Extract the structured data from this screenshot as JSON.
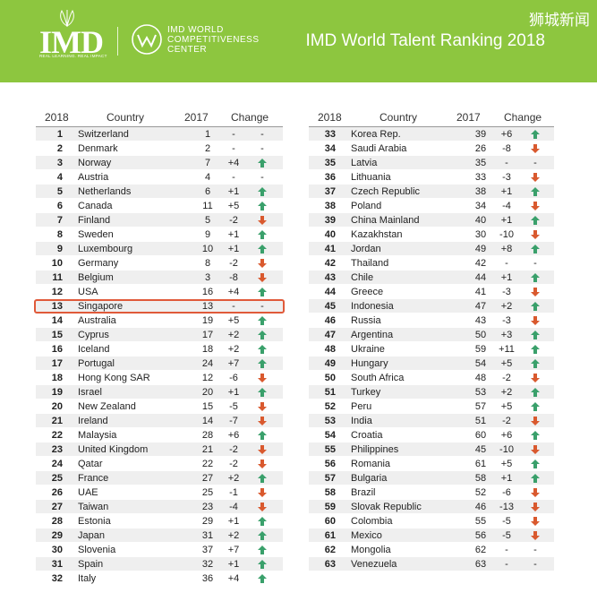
{
  "header": {
    "logo_text": "IMD",
    "logo_tagline": "REAL LEARNING. REAL IMPACT",
    "center_name": [
      "IMD WORLD",
      "COMPETITIVENESS",
      "CENTER"
    ],
    "title": "IMD World Talent Ranking 2018",
    "watermark": "狮城新闻",
    "brand_color": "#8dc63f"
  },
  "columns": {
    "rank": "2018",
    "country": "Country",
    "prev": "2017",
    "change": "Change"
  },
  "colors": {
    "up": "#3aa06b",
    "down": "#d9592e",
    "highlight": "#e05a3a"
  },
  "left_rows": [
    {
      "rank": "1",
      "country": "Switzerland",
      "prev": "1",
      "change": "-",
      "dir": "none"
    },
    {
      "rank": "2",
      "country": "Denmark",
      "prev": "2",
      "change": "-",
      "dir": "none"
    },
    {
      "rank": "3",
      "country": "Norway",
      "prev": "7",
      "change": "+4",
      "dir": "up"
    },
    {
      "rank": "4",
      "country": "Austria",
      "prev": "4",
      "change": "-",
      "dir": "none"
    },
    {
      "rank": "5",
      "country": "Netherlands",
      "prev": "6",
      "change": "+1",
      "dir": "up"
    },
    {
      "rank": "6",
      "country": "Canada",
      "prev": "11",
      "change": "+5",
      "dir": "up"
    },
    {
      "rank": "7",
      "country": "Finland",
      "prev": "5",
      "change": "-2",
      "dir": "down"
    },
    {
      "rank": "8",
      "country": "Sweden",
      "prev": "9",
      "change": "+1",
      "dir": "up"
    },
    {
      "rank": "9",
      "country": "Luxembourg",
      "prev": "10",
      "change": "+1",
      "dir": "up"
    },
    {
      "rank": "10",
      "country": "Germany",
      "prev": "8",
      "change": "-2",
      "dir": "down"
    },
    {
      "rank": "11",
      "country": "Belgium",
      "prev": "3",
      "change": "-8",
      "dir": "down"
    },
    {
      "rank": "12",
      "country": "USA",
      "prev": "16",
      "change": "+4",
      "dir": "up"
    },
    {
      "rank": "13",
      "country": "Singapore",
      "prev": "13",
      "change": "-",
      "dir": "none",
      "highlight": true
    },
    {
      "rank": "14",
      "country": "Australia",
      "prev": "19",
      "change": "+5",
      "dir": "up"
    },
    {
      "rank": "15",
      "country": "Cyprus",
      "prev": "17",
      "change": "+2",
      "dir": "up"
    },
    {
      "rank": "16",
      "country": "Iceland",
      "prev": "18",
      "change": "+2",
      "dir": "up"
    },
    {
      "rank": "17",
      "country": "Portugal",
      "prev": "24",
      "change": "+7",
      "dir": "up"
    },
    {
      "rank": "18",
      "country": "Hong Kong SAR",
      "prev": "12",
      "change": "-6",
      "dir": "down"
    },
    {
      "rank": "19",
      "country": "Israel",
      "prev": "20",
      "change": "+1",
      "dir": "up"
    },
    {
      "rank": "20",
      "country": "New Zealand",
      "prev": "15",
      "change": "-5",
      "dir": "down"
    },
    {
      "rank": "21",
      "country": "Ireland",
      "prev": "14",
      "change": "-7",
      "dir": "down"
    },
    {
      "rank": "22",
      "country": "Malaysia",
      "prev": "28",
      "change": "+6",
      "dir": "up"
    },
    {
      "rank": "23",
      "country": "United Kingdom",
      "prev": "21",
      "change": "-2",
      "dir": "down"
    },
    {
      "rank": "24",
      "country": "Qatar",
      "prev": "22",
      "change": "-2",
      "dir": "down"
    },
    {
      "rank": "25",
      "country": "France",
      "prev": "27",
      "change": "+2",
      "dir": "up"
    },
    {
      "rank": "26",
      "country": "UAE",
      "prev": "25",
      "change": "-1",
      "dir": "down"
    },
    {
      "rank": "27",
      "country": "Taiwan",
      "prev": "23",
      "change": "-4",
      "dir": "down"
    },
    {
      "rank": "28",
      "country": "Estonia",
      "prev": "29",
      "change": "+1",
      "dir": "up"
    },
    {
      "rank": "29",
      "country": "Japan",
      "prev": "31",
      "change": "+2",
      "dir": "up"
    },
    {
      "rank": "30",
      "country": "Slovenia",
      "prev": "37",
      "change": "+7",
      "dir": "up"
    },
    {
      "rank": "31",
      "country": "Spain",
      "prev": "32",
      "change": "+1",
      "dir": "up"
    },
    {
      "rank": "32",
      "country": "Italy",
      "prev": "36",
      "change": "+4",
      "dir": "up"
    }
  ],
  "right_rows": [
    {
      "rank": "33",
      "country": "Korea Rep.",
      "prev": "39",
      "change": "+6",
      "dir": "up"
    },
    {
      "rank": "34",
      "country": "Saudi Arabia",
      "prev": "26",
      "change": "-8",
      "dir": "down"
    },
    {
      "rank": "35",
      "country": "Latvia",
      "prev": "35",
      "change": "-",
      "dir": "none"
    },
    {
      "rank": "36",
      "country": "Lithuania",
      "prev": "33",
      "change": "-3",
      "dir": "down"
    },
    {
      "rank": "37",
      "country": "Czech Republic",
      "prev": "38",
      "change": "+1",
      "dir": "up"
    },
    {
      "rank": "38",
      "country": "Poland",
      "prev": "34",
      "change": "-4",
      "dir": "down"
    },
    {
      "rank": "39",
      "country": "China Mainland",
      "prev": "40",
      "change": "+1",
      "dir": "up"
    },
    {
      "rank": "40",
      "country": "Kazakhstan",
      "prev": "30",
      "change": "-10",
      "dir": "down"
    },
    {
      "rank": "41",
      "country": "Jordan",
      "prev": "49",
      "change": "+8",
      "dir": "up"
    },
    {
      "rank": "42",
      "country": "Thailand",
      "prev": "42",
      "change": "-",
      "dir": "none"
    },
    {
      "rank": "43",
      "country": "Chile",
      "prev": "44",
      "change": "+1",
      "dir": "up"
    },
    {
      "rank": "44",
      "country": "Greece",
      "prev": "41",
      "change": "-3",
      "dir": "down"
    },
    {
      "rank": "45",
      "country": "Indonesia",
      "prev": "47",
      "change": "+2",
      "dir": "up"
    },
    {
      "rank": "46",
      "country": "Russia",
      "prev": "43",
      "change": "-3",
      "dir": "down"
    },
    {
      "rank": "47",
      "country": "Argentina",
      "prev": "50",
      "change": "+3",
      "dir": "up"
    },
    {
      "rank": "48",
      "country": "Ukraine",
      "prev": "59",
      "change": "+11",
      "dir": "up"
    },
    {
      "rank": "49",
      "country": "Hungary",
      "prev": "54",
      "change": "+5",
      "dir": "up"
    },
    {
      "rank": "50",
      "country": "South Africa",
      "prev": "48",
      "change": "-2",
      "dir": "down"
    },
    {
      "rank": "51",
      "country": "Turkey",
      "prev": "53",
      "change": "+2",
      "dir": "up"
    },
    {
      "rank": "52",
      "country": "Peru",
      "prev": "57",
      "change": "+5",
      "dir": "up"
    },
    {
      "rank": "53",
      "country": "India",
      "prev": "51",
      "change": "-2",
      "dir": "down"
    },
    {
      "rank": "54",
      "country": "Croatia",
      "prev": "60",
      "change": "+6",
      "dir": "up"
    },
    {
      "rank": "55",
      "country": "Philippines",
      "prev": "45",
      "change": "-10",
      "dir": "down"
    },
    {
      "rank": "56",
      "country": "Romania",
      "prev": "61",
      "change": "+5",
      "dir": "up"
    },
    {
      "rank": "57",
      "country": "Bulgaria",
      "prev": "58",
      "change": "+1",
      "dir": "up"
    },
    {
      "rank": "58",
      "country": "Brazil",
      "prev": "52",
      "change": "-6",
      "dir": "down"
    },
    {
      "rank": "59",
      "country": "Slovak Republic",
      "prev": "46",
      "change": "-13",
      "dir": "down"
    },
    {
      "rank": "60",
      "country": "Colombia",
      "prev": "55",
      "change": "-5",
      "dir": "down"
    },
    {
      "rank": "61",
      "country": "Mexico",
      "prev": "56",
      "change": "-5",
      "dir": "down"
    },
    {
      "rank": "62",
      "country": "Mongolia",
      "prev": "62",
      "change": "-",
      "dir": "none"
    },
    {
      "rank": "63",
      "country": "Venezuela",
      "prev": "63",
      "change": "-",
      "dir": "none"
    }
  ]
}
